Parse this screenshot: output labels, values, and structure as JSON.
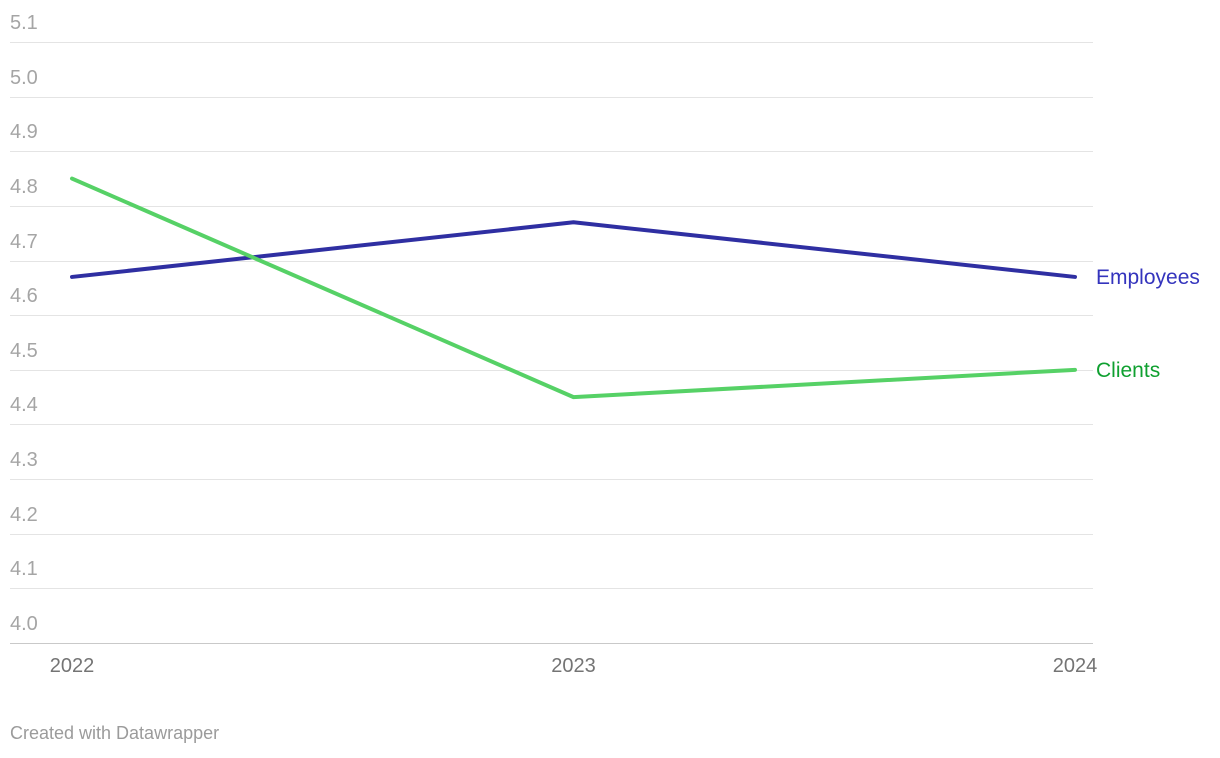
{
  "chart_data": {
    "type": "line",
    "title": "",
    "x": [
      "2022",
      "2023",
      "2024"
    ],
    "series": [
      {
        "name": "Employees",
        "values": [
          4.67,
          4.77,
          4.67
        ],
        "color": "#2f2fa2",
        "label_color": "#3434bd"
      },
      {
        "name": "Clients",
        "values": [
          4.85,
          4.45,
          4.5
        ],
        "color": "#56d166",
        "label_color": "#0fa030"
      }
    ],
    "ylim": [
      4.0,
      5.1
    ],
    "y_tick_step": 0.1,
    "y_ticks": [
      "5.1",
      "5.0",
      "4.9",
      "4.8",
      "4.7",
      "4.6",
      "4.5",
      "4.4",
      "4.3",
      "4.2",
      "4.1",
      "4.0"
    ],
    "grid": true,
    "legend_position": "right-of-line-end",
    "palette": {
      "gridline": "#e4e4e4",
      "baseline": "#c9c9c9",
      "y_tick_text": "#a5a5a5",
      "x_tick_text": "#747474",
      "attribution_text": "#9b9b9b",
      "background": "#ffffff"
    }
  },
  "footer": {
    "attribution": "Created with Datawrapper"
  }
}
